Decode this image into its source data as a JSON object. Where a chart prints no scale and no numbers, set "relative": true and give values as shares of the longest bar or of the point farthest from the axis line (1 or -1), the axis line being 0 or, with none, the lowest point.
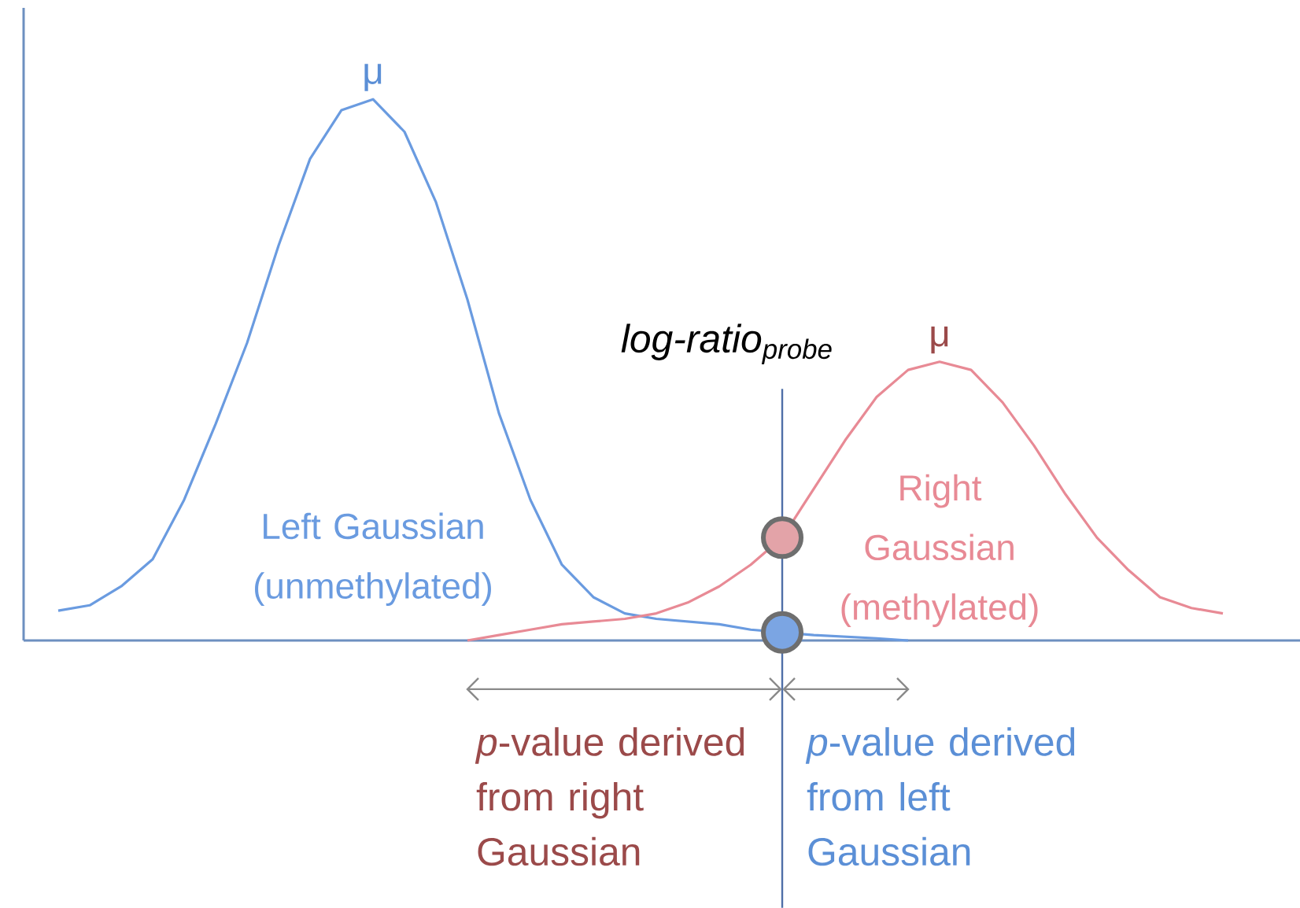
{
  "chart_data": {
    "type": "line",
    "relative": true,
    "categories": [
      null,
      null,
      null,
      null,
      null,
      null,
      null,
      null,
      null,
      null,
      null,
      null,
      null,
      null,
      null,
      null,
      null,
      null,
      null,
      null,
      null,
      null,
      null,
      null,
      null,
      null,
      null,
      null,
      null,
      null,
      null,
      null,
      null,
      null,
      null,
      null,
      null,
      null
    ],
    "series": [
      {
        "name": "Left Gaussian (unmethylated)",
        "color": "#6a9be0",
        "values": [
          0.055,
          0.065,
          0.1,
          0.15,
          0.26,
          0.4,
          0.55,
          0.73,
          0.89,
          0.98,
          1,
          0.94,
          0.81,
          0.63,
          0.42,
          0.26,
          0.14,
          0.08,
          0.05,
          0.04,
          0.035,
          0.03,
          0.02,
          0.015,
          0.01,
          0.007,
          0.004,
          0,
          null,
          null,
          null,
          null,
          null,
          null,
          null,
          null,
          null,
          null
        ]
      },
      {
        "name": "Right Gaussian (methylated)",
        "color": "#e88a95",
        "values": [
          null,
          null,
          null,
          null,
          null,
          null,
          null,
          null,
          null,
          null,
          null,
          null,
          null,
          0,
          0.01,
          0.02,
          0.03,
          0.035,
          0.04,
          0.05,
          0.07,
          0.1,
          0.14,
          0.19,
          0.28,
          0.37,
          0.45,
          0.5,
          0.515,
          0.5,
          0.44,
          0.36,
          0.27,
          0.19,
          0.13,
          0.08,
          0.06,
          0.05
        ]
      }
    ],
    "annotations": [
      "μ",
      "μ",
      "*p*-value derived from right Gaussian",
      "*p*-value derived from left Gaussian",
      "log-ratio$_{probe}$"
    ]
  }
}
